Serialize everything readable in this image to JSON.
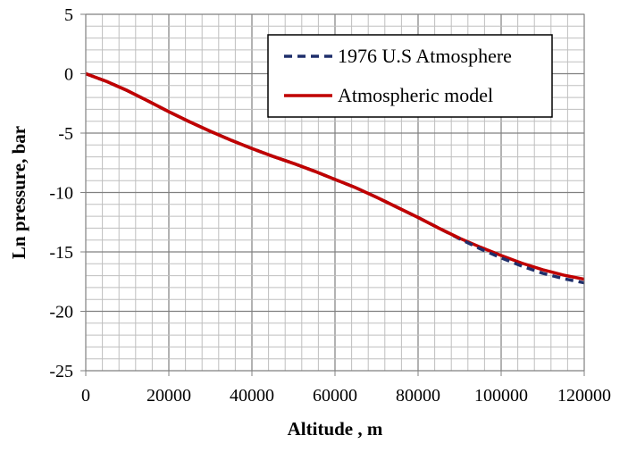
{
  "chart_data": {
    "type": "line",
    "xlabel": "Altitude , m",
    "ylabel": "Ln pressure, bar",
    "xlim": [
      0,
      120000
    ],
    "ylim": [
      -25,
      5
    ],
    "xticks": [
      0,
      20000,
      40000,
      60000,
      80000,
      100000,
      120000
    ],
    "yticks": [
      5,
      0,
      -5,
      -10,
      -15,
      -20,
      -25
    ],
    "x_minor_step": 4000,
    "y_minor_step": 1,
    "grid": true,
    "legend_position": "top-right",
    "series": [
      {
        "name": "1976 U.S Atmosphere",
        "color": "#1f2f6b",
        "style": "dashed",
        "x": [
          0,
          5000,
          10000,
          15000,
          20000,
          25000,
          30000,
          35000,
          40000,
          45000,
          50000,
          55000,
          60000,
          65000,
          70000,
          75000,
          80000,
          85000,
          90000,
          95000,
          100000,
          105000,
          110000,
          115000,
          120000
        ],
        "y": [
          0,
          -0.65,
          -1.42,
          -2.3,
          -3.2,
          -4.05,
          -4.85,
          -5.6,
          -6.3,
          -6.95,
          -7.55,
          -8.2,
          -8.9,
          -9.6,
          -10.4,
          -11.25,
          -12.1,
          -13.0,
          -13.9,
          -14.75,
          -15.5,
          -16.2,
          -16.8,
          -17.25,
          -17.6
        ]
      },
      {
        "name": "Atmospheric model",
        "color": "#c00000",
        "style": "solid",
        "x": [
          0,
          5000,
          10000,
          15000,
          20000,
          25000,
          30000,
          35000,
          40000,
          45000,
          50000,
          55000,
          60000,
          65000,
          70000,
          75000,
          80000,
          85000,
          90000,
          95000,
          100000,
          105000,
          110000,
          115000,
          120000
        ],
        "y": [
          0,
          -0.65,
          -1.42,
          -2.3,
          -3.2,
          -4.05,
          -4.85,
          -5.6,
          -6.3,
          -6.95,
          -7.55,
          -8.2,
          -8.9,
          -9.6,
          -10.4,
          -11.25,
          -12.1,
          -13.0,
          -13.85,
          -14.6,
          -15.3,
          -15.95,
          -16.5,
          -16.95,
          -17.3
        ]
      }
    ]
  }
}
